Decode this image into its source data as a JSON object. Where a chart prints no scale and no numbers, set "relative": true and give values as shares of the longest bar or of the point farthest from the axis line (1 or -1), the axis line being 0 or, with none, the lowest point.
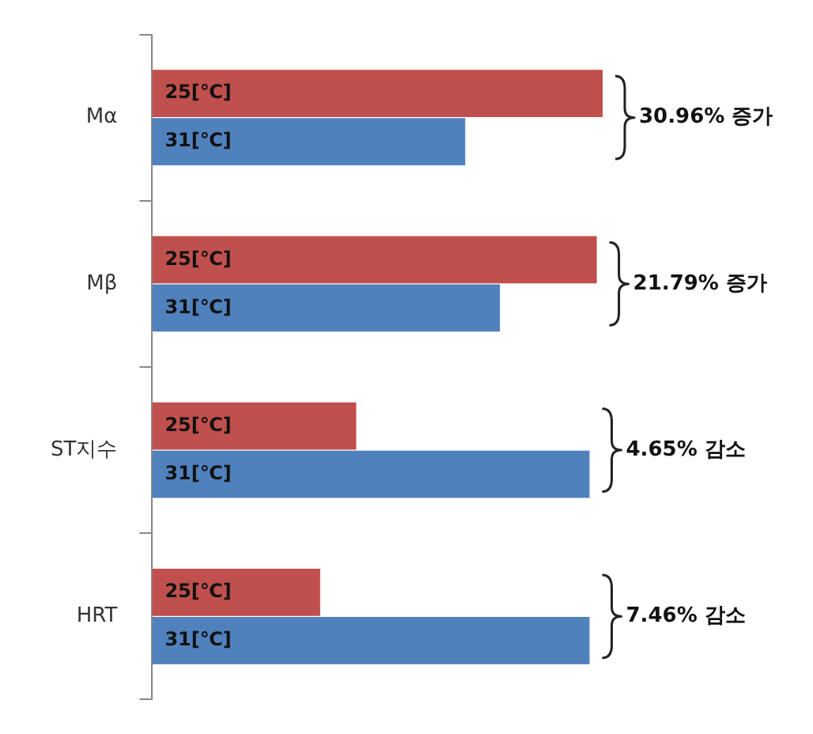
{
  "chart_data": {
    "type": "bar",
    "orientation": "horizontal",
    "relative": true,
    "categories": [
      "Mα",
      "Mβ",
      "ST지수",
      "HRT"
    ],
    "series": [
      {
        "name": "25[℃]",
        "color": "#c0504d",
        "values": [
          1,
          0.987,
          0.453,
          0.373
        ]
      },
      {
        "name": "31[℃]",
        "color": "#4f81bd",
        "values": [
          0.695,
          0.772,
          0.971,
          0.971
        ]
      }
    ],
    "legend": false,
    "annotations": [
      "30.96% 증가",
      "21.79% 증가",
      "4.65% 감소",
      "7.46% 감소"
    ]
  }
}
